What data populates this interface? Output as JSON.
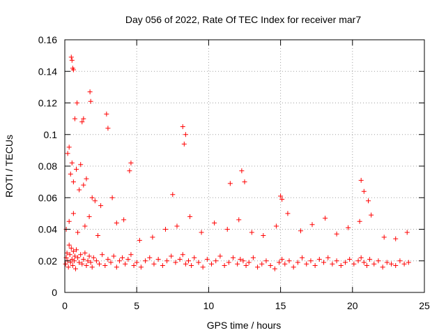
{
  "chart_data": {
    "type": "scatter",
    "title": "Day 056 of 2022, Rate Of TEC Index for receiver mar7",
    "xlabel": "GPS time / hours",
    "ylabel": "ROTI / TECUs",
    "xlim": [
      0,
      25
    ],
    "ylim": [
      0,
      0.16
    ],
    "xticks": [
      "0",
      "5",
      "10",
      "15",
      "20",
      "25"
    ],
    "yticks": [
      "0",
      "0.02",
      "0.04",
      "0.06",
      "0.08",
      "0.1",
      "0.12",
      "0.14",
      "0.16"
    ],
    "grid": true,
    "marker": "plus",
    "color": "#ff0000",
    "series": [
      {
        "x": [
          0.05,
          0.1,
          0.15,
          0.2,
          0.25,
          0.3,
          0.35,
          0.4,
          0.45,
          0.5,
          0.55,
          0.6,
          0.65,
          0.7,
          0.75,
          0.8,
          0.9,
          1.0,
          1.1,
          1.2,
          1.3,
          1.4,
          1.5,
          1.6,
          1.7,
          1.8,
          1.9,
          2.0,
          2.2,
          2.4,
          2.6,
          2.8,
          3.0,
          3.2,
          3.4,
          3.6,
          3.8,
          4.0,
          4.2,
          4.4,
          4.6,
          4.8,
          5.0,
          5.3,
          5.6,
          5.9,
          6.2,
          6.5,
          6.8,
          7.1,
          7.4,
          7.7,
          8.0,
          8.2,
          8.4,
          8.6,
          8.8,
          9.0,
          9.3,
          9.6,
          9.9,
          10.2,
          10.5,
          10.8,
          11.1,
          11.4,
          11.7,
          12.0,
          12.2,
          12.4,
          12.6,
          12.8,
          13.1,
          13.4,
          13.7,
          14.0,
          14.3,
          14.6,
          14.9,
          15.1,
          15.3,
          15.6,
          15.9,
          16.2,
          16.5,
          16.8,
          17.1,
          17.4,
          17.7,
          18.0,
          18.3,
          18.6,
          18.9,
          19.2,
          19.5,
          19.8,
          20.1,
          20.4,
          20.6,
          20.8,
          21.0,
          21.2,
          21.5,
          21.8,
          22.1,
          22.4,
          22.7,
          23.0,
          23.3,
          23.6,
          23.9,
          0.45,
          0.5,
          0.55,
          0.6,
          0.7,
          0.85,
          1.2,
          1.3,
          1.75,
          1.8,
          2.9,
          3.0,
          0.2,
          0.3,
          0.4,
          0.5,
          0.6,
          0.8,
          1.0,
          1.1,
          1.3,
          1.5,
          1.9,
          2.1,
          2.5,
          3.3,
          4.5,
          4.6,
          8.2,
          8.4,
          8.3,
          7.5,
          12.3,
          12.5,
          11.5,
          15.0,
          15.1,
          20.6,
          20.8,
          21.1,
          0.1,
          0.3,
          0.6,
          0.9,
          1.4,
          1.7,
          2.3,
          3.6,
          4.1,
          5.2,
          6.1,
          7.0,
          7.8,
          8.7,
          9.5,
          10.4,
          11.3,
          12.1,
          13.0,
          13.8,
          14.7,
          15.5,
          16.4,
          17.2,
          18.1,
          18.9,
          19.7,
          20.5,
          21.3,
          22.2,
          23.0,
          23.8
        ],
        "y": [
          0.018,
          0.022,
          0.025,
          0.02,
          0.016,
          0.03,
          0.024,
          0.019,
          0.028,
          0.021,
          0.017,
          0.026,
          0.02,
          0.023,
          0.015,
          0.027,
          0.022,
          0.019,
          0.024,
          0.018,
          0.021,
          0.025,
          0.017,
          0.02,
          0.023,
          0.019,
          0.016,
          0.022,
          0.02,
          0.018,
          0.024,
          0.017,
          0.021,
          0.019,
          0.023,
          0.016,
          0.02,
          0.022,
          0.018,
          0.021,
          0.024,
          0.017,
          0.019,
          0.016,
          0.02,
          0.022,
          0.018,
          0.021,
          0.017,
          0.02,
          0.023,
          0.019,
          0.021,
          0.024,
          0.018,
          0.02,
          0.017,
          0.022,
          0.019,
          0.016,
          0.021,
          0.018,
          0.02,
          0.023,
          0.017,
          0.019,
          0.022,
          0.018,
          0.021,
          0.02,
          0.017,
          0.019,
          0.022,
          0.016,
          0.018,
          0.02,
          0.017,
          0.015,
          0.019,
          0.021,
          0.018,
          0.02,
          0.016,
          0.019,
          0.022,
          0.018,
          0.02,
          0.017,
          0.021,
          0.019,
          0.022,
          0.018,
          0.02,
          0.017,
          0.019,
          0.021,
          0.018,
          0.02,
          0.022,
          0.019,
          0.017,
          0.021,
          0.018,
          0.02,
          0.016,
          0.019,
          0.018,
          0.017,
          0.02,
          0.018,
          0.019,
          0.149,
          0.147,
          0.142,
          0.141,
          0.11,
          0.12,
          0.108,
          0.11,
          0.127,
          0.121,
          0.113,
          0.104,
          0.088,
          0.092,
          0.075,
          0.082,
          0.07,
          0.078,
          0.065,
          0.081,
          0.068,
          0.072,
          0.06,
          0.058,
          0.055,
          0.06,
          0.077,
          0.082,
          0.105,
          0.1,
          0.094,
          0.062,
          0.077,
          0.07,
          0.069,
          0.061,
          0.059,
          0.071,
          0.064,
          0.058,
          0.04,
          0.045,
          0.05,
          0.038,
          0.042,
          0.048,
          0.036,
          0.044,
          0.046,
          0.033,
          0.035,
          0.04,
          0.042,
          0.048,
          0.038,
          0.044,
          0.04,
          0.046,
          0.038,
          0.036,
          0.042,
          0.05,
          0.039,
          0.043,
          0.047,
          0.037,
          0.041,
          0.045,
          0.049,
          0.035,
          0.034,
          0.038
        ]
      }
    ]
  }
}
